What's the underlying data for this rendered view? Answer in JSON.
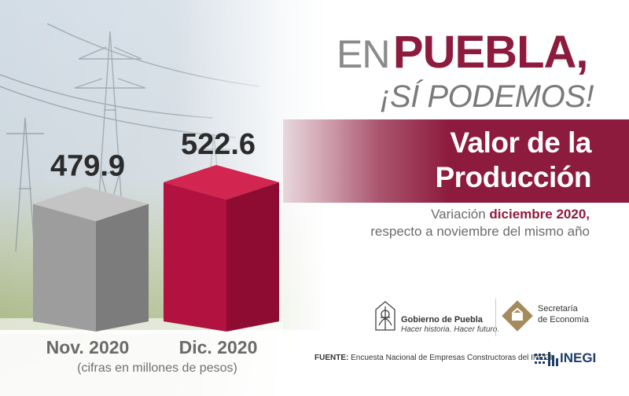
{
  "heading": {
    "prefix": "EN",
    "place": "PUEBLA,",
    "slogan": "¡SÍ PODEMOS!"
  },
  "banner": {
    "line1": "Valor de la",
    "line2": "Producción"
  },
  "variation": {
    "prefix": "Variación",
    "highlight": "diciembre 2020,",
    "line2": "respecto a noviembre del mismo año"
  },
  "chart_data": {
    "type": "bar",
    "title": "Valor de la Producción",
    "categories": [
      "Nov. 2020",
      "Dic. 2020"
    ],
    "values": [
      479.9,
      522.6
    ],
    "value_labels": [
      "479.9",
      "522.6"
    ],
    "note": "(cifras en millones de pesos)",
    "colors": [
      "#9c9c9c",
      "#b0123e"
    ],
    "grid": false,
    "legend": "none"
  },
  "logos": {
    "gobierno_name": "Gobierno de Puebla",
    "gobierno_slogan": "Hacer historia. Hacer futuro.",
    "secretaria_line1": "Secretaría",
    "secretaria_line2": "de Economía"
  },
  "source": {
    "label": "FUENTE:",
    "text": "Encuesta Nacional de Empresas Constructoras del INEGI"
  },
  "inegi": "INEGI"
}
